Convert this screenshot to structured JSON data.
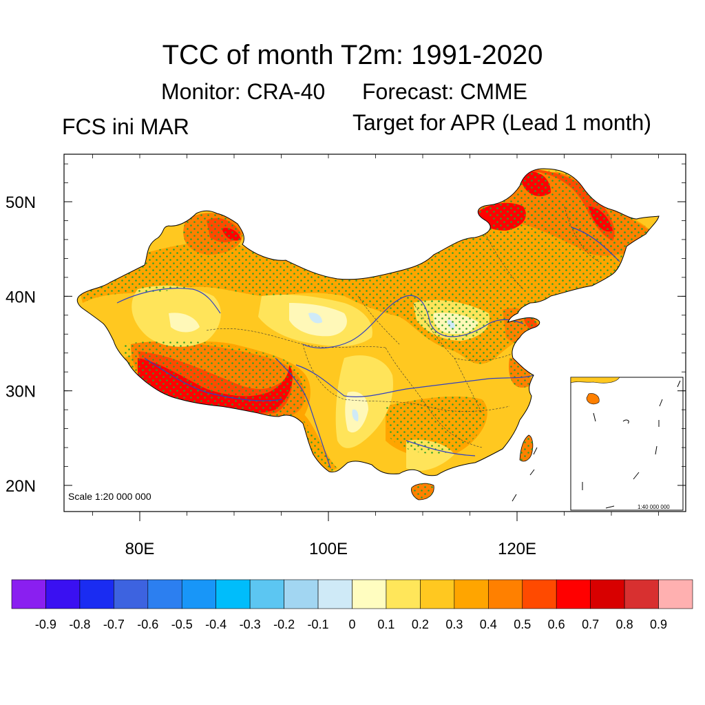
{
  "title": "TCC of month T2m: 1991-2020",
  "subtitle": {
    "monitor": "Monitor: CRA-40",
    "forecast": "Forecast: CMME"
  },
  "left_label": "FCS ini MAR",
  "right_label": "Target for APR (Lead 1 month)",
  "scale_label": "Scale 1:20 000 000",
  "inset_scale_label": "1:40 000 000",
  "map": {
    "lon_range": [
      72,
      138
    ],
    "lat_range": [
      17,
      55
    ],
    "lat_ticks": [
      {
        "value": 50,
        "label": "50N"
      },
      {
        "value": 40,
        "label": "40N"
      },
      {
        "value": 30,
        "label": "30N"
      },
      {
        "value": 20,
        "label": "20N"
      }
    ],
    "lon_ticks": [
      {
        "value": 80,
        "label": "80E"
      },
      {
        "value": 100,
        "label": "100E"
      },
      {
        "value": 120,
        "label": "120E"
      }
    ]
  },
  "colorbar": {
    "colors": [
      "#8a1ff0",
      "#3a10f2",
      "#1a2cf2",
      "#3d63e0",
      "#2c7ff0",
      "#1896f8",
      "#00bdfb",
      "#5cc6f2",
      "#a2d6f2",
      "#cfeaf7",
      "#fffdc0",
      "#ffe65a",
      "#ffc820",
      "#ffa500",
      "#ff8000",
      "#ff4a00",
      "#ff0000",
      "#d80000",
      "#d83030",
      "#ffb0b0"
    ],
    "labels": [
      "-0.9",
      "-0.8",
      "-0.7",
      "-0.6",
      "-0.5",
      "-0.4",
      "-0.3",
      "-0.2",
      "-0.1",
      "0",
      "0.1",
      "0.2",
      "0.3",
      "0.4",
      "0.5",
      "0.6",
      "0.7",
      "0.8",
      "0.9"
    ]
  },
  "palette": {
    "level_0_1": "#fff8b8",
    "level_0_2": "#ffe45a",
    "level_0_3": "#ffc820",
    "level_0_4": "#ffa500",
    "level_0_5": "#ff8000",
    "level_0_6": "#ff4a00",
    "level_0_7": "#ff0000",
    "level_neg": "#cfeaf7",
    "stipple": "#2ba02b",
    "river": "#3040c0"
  }
}
